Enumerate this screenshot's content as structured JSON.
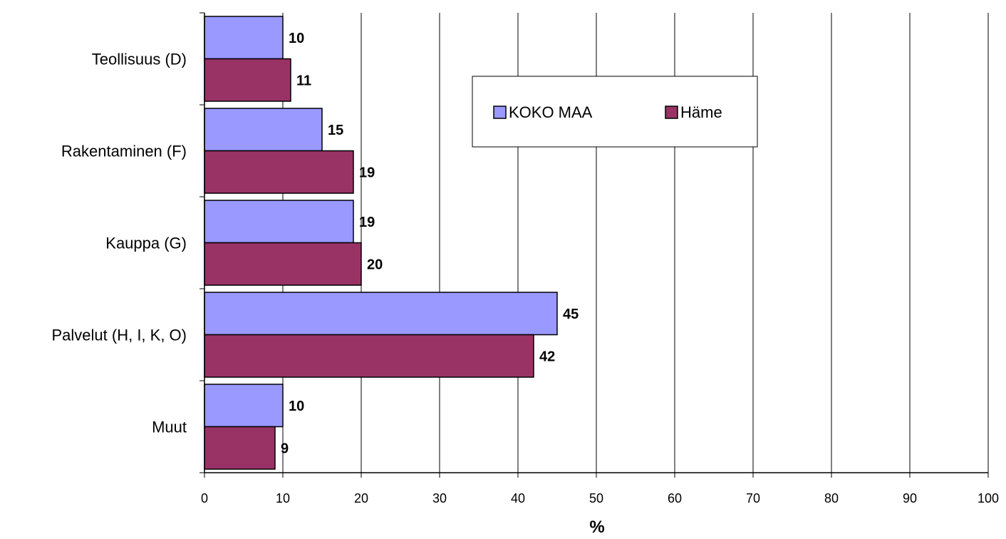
{
  "chart_data": {
    "type": "bar",
    "orientation": "horizontal",
    "categories": [
      "Teollisuus (D)",
      "Rakentaminen (F)",
      "Kauppa (G)",
      "Palvelut (H, I, K, O)",
      "Muut"
    ],
    "series": [
      {
        "name": "KOKO MAA",
        "values": [
          10,
          15,
          19,
          45,
          10
        ],
        "color": "#9999ff"
      },
      {
        "name": "Häme",
        "values": [
          11,
          19,
          20,
          42,
          9
        ],
        "color": "#993366"
      }
    ],
    "xlabel": "%",
    "ylabel": "",
    "xlim": [
      0,
      100
    ],
    "xticks": [
      0,
      10,
      20,
      30,
      40,
      50,
      60,
      70,
      80,
      90,
      100
    ],
    "grid": "vertical",
    "legend_position": "top-right"
  }
}
